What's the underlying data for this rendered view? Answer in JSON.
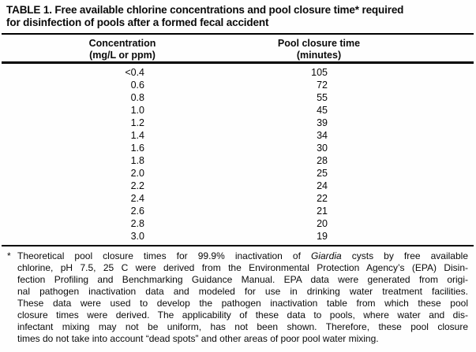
{
  "title": {
    "line1": "TABLE 1. Free available chlorine concentrations and pool closure time* required",
    "line2": "for disinfection of pools after a formed fecal accident"
  },
  "table": {
    "col1_header_line1": "Concentration",
    "col1_header_line2": "(mg/L or ppm)",
    "col2_header_line1": "Pool closure time",
    "col2_header_line2": "(minutes)",
    "rows": [
      {
        "concentration": "<0.4",
        "time": "105"
      },
      {
        "concentration": "0.6",
        "time": "72"
      },
      {
        "concentration": "0.8",
        "time": "55"
      },
      {
        "concentration": "1.0",
        "time": "45"
      },
      {
        "concentration": "1.2",
        "time": "39"
      },
      {
        "concentration": "1.4",
        "time": "34"
      },
      {
        "concentration": "1.6",
        "time": "30"
      },
      {
        "concentration": "1.8",
        "time": "28"
      },
      {
        "concentration": "2.0",
        "time": "25"
      },
      {
        "concentration": "2.2",
        "time": "24"
      },
      {
        "concentration": "2.4",
        "time": "22"
      },
      {
        "concentration": "2.6",
        "time": "21"
      },
      {
        "concentration": "2.8",
        "time": "20"
      },
      {
        "concentration": "3.0",
        "time": "19"
      }
    ]
  },
  "footnote": {
    "marker": "*",
    "line1_pre": "Theoretical pool closure times for 99.9% inactivation of ",
    "line1_italic": "Giardia",
    "line1_post": " cysts by free available",
    "lines": [
      "chlorine, pH 7.5, 25 C were derived from the Environmental Protection Agency’s (EPA) Disin-",
      "fection Profiling and Benchmarking Guidance Manual. EPA data were generated from origi-",
      "nal pathogen inactivation data and modeled for use in drinking water treatment facilities.",
      "These data were used to develop the pathogen inactivation table from which these pool",
      "closure times were derived. The applicability of these data to pools, where water and dis-",
      "infectant mixing may not be uniform, has not been shown. Therefore, these pool closure"
    ],
    "last_line": "times do not take into account “dead spots” and other areas of poor pool water mixing."
  },
  "colors": {
    "text": "#0a0a0a",
    "background": "#fefefe",
    "rule": "#000000"
  }
}
